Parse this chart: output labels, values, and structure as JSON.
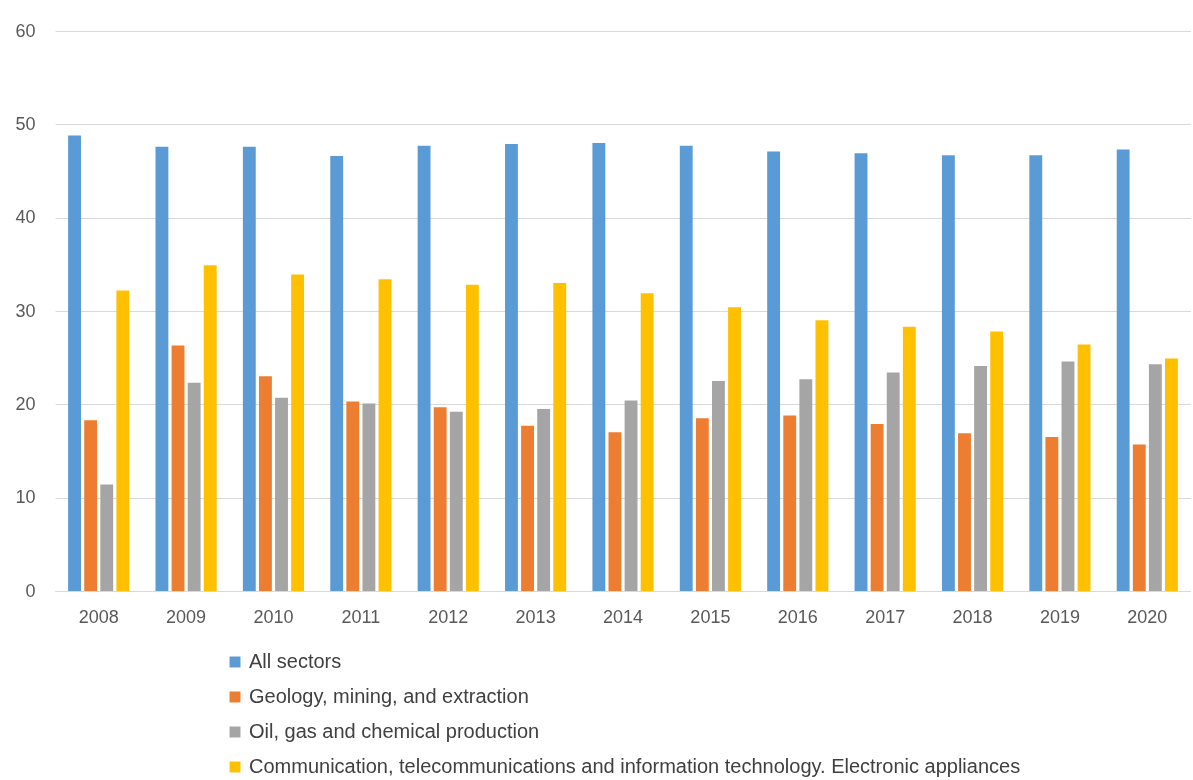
{
  "chart_data": {
    "type": "bar",
    "categories": [
      "2008",
      "2009",
      "2010",
      "2011",
      "2012",
      "2013",
      "2014",
      "2015",
      "2016",
      "2017",
      "2018",
      "2019",
      "2020"
    ],
    "series": [
      {
        "name": "All sectors",
        "color": "#5b9bd5",
        "values": [
          48.8,
          47.6,
          47.6,
          46.6,
          47.7,
          47.9,
          48.0,
          47.7,
          47.1,
          46.9,
          46.7,
          46.7,
          47.3
        ]
      },
      {
        "name": "Geology, mining, and extraction",
        "color": "#ed7d31",
        "values": [
          18.3,
          26.3,
          23.0,
          20.3,
          19.7,
          17.7,
          17.0,
          18.5,
          18.8,
          17.9,
          16.9,
          16.5,
          15.7
        ]
      },
      {
        "name": "Oil, gas and chemical production",
        "color": "#a5a5a5",
        "values": [
          11.4,
          22.3,
          20.7,
          20.1,
          19.2,
          19.5,
          20.4,
          22.5,
          22.7,
          23.4,
          24.1,
          24.6,
          24.3
        ]
      },
      {
        "name": "Communication, telecommunications and information technology. Electronic appliances",
        "color": "#ffc000",
        "values": [
          32.2,
          34.9,
          33.9,
          33.4,
          32.8,
          33.0,
          31.9,
          30.4,
          29.0,
          28.3,
          27.8,
          26.4,
          24.9
        ]
      }
    ],
    "ylim": [
      0,
      60
    ],
    "yticks": [
      0,
      10,
      20,
      30,
      40,
      50,
      60
    ],
    "grid": "y",
    "legend": "bottom"
  }
}
